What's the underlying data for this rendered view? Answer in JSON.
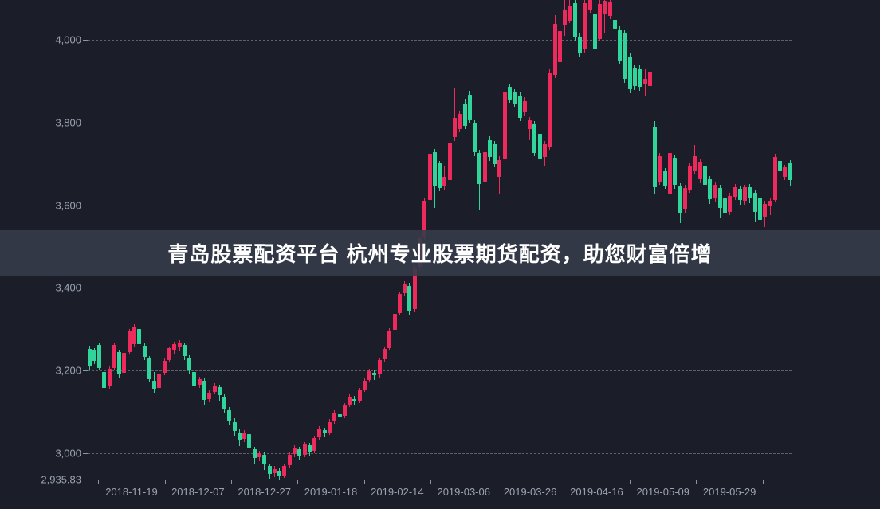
{
  "page": {
    "background": "#1b1e29"
  },
  "banner": {
    "text": "青岛股票配资平台 杭州专业股票期货配资，助您财富倍增",
    "background": "rgba(53,59,73,0.90)",
    "text_color": "#ffffff"
  },
  "chart_data": {
    "type": "candlestick",
    "title": "",
    "convention": "chinese-market: red = up candle, green = down candle",
    "up_color": "#ee2a5c",
    "down_color": "#2fd59b",
    "axis_color": "#8d94a2",
    "label_color": "#9aa2b1",
    "grid": "horizontal dashed only",
    "y_axis": {
      "ticks": [
        {
          "label": "4,000",
          "value": 4000,
          "grid": true
        },
        {
          "label": "3,800",
          "value": 3800,
          "grid": true
        },
        {
          "label": "3,600",
          "value": 3600,
          "grid": true
        },
        {
          "label": "3,400",
          "value": 3400,
          "grid": true
        },
        {
          "label": "3,200",
          "value": 3200,
          "grid": true
        },
        {
          "label": "3,000",
          "value": 3000,
          "grid": true
        },
        {
          "label": "2,935.83",
          "value": 2935.83,
          "grid": false
        }
      ],
      "min": 2935.83,
      "top_of_frame_value": 4096
    },
    "x_axis": {
      "labels": [
        "2018-11-19",
        "2018-12-07",
        "2018-12-27",
        "2019-01-18",
        "2019-02-14",
        "2019-03-06",
        "2019-03-26",
        "2019-04-16",
        "2019-05-09",
        "2019-05-29"
      ]
    },
    "candles": [
      [
        3252,
        3260,
        3200,
        3210
      ],
      [
        3248,
        3254,
        3216,
        3224
      ],
      [
        3262,
        3268,
        3200,
        3206
      ],
      [
        3196,
        3202,
        3148,
        3158
      ],
      [
        3162,
        3210,
        3156,
        3205
      ],
      [
        3206,
        3268,
        3200,
        3262
      ],
      [
        3244,
        3250,
        3182,
        3190
      ],
      [
        3194,
        3248,
        3188,
        3242
      ],
      [
        3244,
        3300,
        3240,
        3296
      ],
      [
        3264,
        3312,
        3256,
        3306
      ],
      [
        3300,
        3306,
        3256,
        3264
      ],
      [
        3260,
        3268,
        3226,
        3234
      ],
      [
        3230,
        3236,
        3172,
        3180
      ],
      [
        3176,
        3196,
        3146,
        3156
      ],
      [
        3158,
        3198,
        3152,
        3192
      ],
      [
        3194,
        3230,
        3188,
        3224
      ],
      [
        3226,
        3258,
        3220,
        3254
      ],
      [
        3250,
        3270,
        3240,
        3264
      ],
      [
        3258,
        3274,
        3246,
        3268
      ],
      [
        3262,
        3268,
        3226,
        3236
      ],
      [
        3232,
        3238,
        3190,
        3200
      ],
      [
        3196,
        3202,
        3152,
        3164
      ],
      [
        3166,
        3186,
        3158,
        3180
      ],
      [
        3176,
        3182,
        3118,
        3130
      ],
      [
        3132,
        3152,
        3124,
        3146
      ],
      [
        3148,
        3170,
        3142,
        3164
      ],
      [
        3160,
        3166,
        3128,
        3140
      ],
      [
        3136,
        3142,
        3096,
        3108
      ],
      [
        3104,
        3112,
        3068,
        3080
      ],
      [
        3076,
        3084,
        3042,
        3054
      ],
      [
        3050,
        3058,
        3018,
        3032
      ],
      [
        3034,
        3056,
        3028,
        3050
      ],
      [
        3046,
        3052,
        3002,
        3014
      ],
      [
        3010,
        3016,
        2974,
        2988
      ],
      [
        2990,
        3006,
        2980,
        3000
      ],
      [
        2996,
        3002,
        2960,
        2974
      ],
      [
        2970,
        2976,
        2938,
        2950
      ],
      [
        2952,
        2970,
        2942,
        2962
      ],
      [
        2958,
        2964,
        2935.83,
        2944
      ],
      [
        2946,
        2976,
        2940,
        2970
      ],
      [
        2972,
        3002,
        2966,
        2996
      ],
      [
        2998,
        3020,
        2990,
        3014
      ],
      [
        3010,
        3016,
        2984,
        2994
      ],
      [
        2996,
        3028,
        2990,
        3024
      ],
      [
        3020,
        3026,
        2994,
        3004
      ],
      [
        3006,
        3042,
        3000,
        3036
      ],
      [
        3038,
        3066,
        3032,
        3060
      ],
      [
        3056,
        3062,
        3038,
        3048
      ],
      [
        3050,
        3082,
        3044,
        3076
      ],
      [
        3078,
        3104,
        3072,
        3098
      ],
      [
        3094,
        3100,
        3080,
        3088
      ],
      [
        3090,
        3122,
        3084,
        3116
      ],
      [
        3118,
        3142,
        3112,
        3136
      ],
      [
        3132,
        3138,
        3116,
        3126
      ],
      [
        3128,
        3158,
        3122,
        3152
      ],
      [
        3154,
        3182,
        3148,
        3176
      ],
      [
        3178,
        3204,
        3172,
        3198
      ],
      [
        3194,
        3200,
        3178,
        3188
      ],
      [
        3190,
        3232,
        3184,
        3226
      ],
      [
        3228,
        3258,
        3222,
        3252
      ],
      [
        3254,
        3302,
        3248,
        3296
      ],
      [
        3298,
        3344,
        3292,
        3338
      ],
      [
        3340,
        3392,
        3334,
        3386
      ],
      [
        3388,
        3416,
        3380,
        3408
      ],
      [
        3404,
        3412,
        3334,
        3344
      ],
      [
        3348,
        3454,
        3342,
        3448
      ],
      [
        3450,
        3526,
        3444,
        3520
      ],
      [
        3522,
        3616,
        3516,
        3610
      ],
      [
        3612,
        3732,
        3606,
        3725
      ],
      [
        3728,
        3736,
        3594,
        3646
      ],
      [
        3702,
        3708,
        3634,
        3641
      ],
      [
        3645,
        3694,
        3636,
        3668
      ],
      [
        3660,
        3762,
        3654,
        3752
      ],
      [
        3764,
        3884,
        3756,
        3812
      ],
      [
        3784,
        3828,
        3776,
        3820
      ],
      [
        3846,
        3858,
        3784,
        3792
      ],
      [
        3868,
        3876,
        3798,
        3806
      ],
      [
        3798,
        3806,
        3718,
        3728
      ],
      [
        3726,
        3734,
        3588,
        3652
      ],
      [
        3658,
        3806,
        3650,
        3728
      ],
      [
        3758,
        3766,
        3708,
        3716
      ],
      [
        3748,
        3756,
        3692,
        3700
      ],
      [
        3668,
        3718,
        3628,
        3710
      ],
      [
        3712,
        3888,
        3704,
        3872
      ],
      [
        3886,
        3894,
        3848,
        3856
      ],
      [
        3872,
        3880,
        3838,
        3846
      ],
      [
        3866,
        3872,
        3804,
        3812
      ],
      [
        3824,
        3862,
        3816,
        3852
      ],
      [
        3784,
        3814,
        3758,
        3806
      ],
      [
        3796,
        3804,
        3718,
        3726
      ],
      [
        3772,
        3780,
        3704,
        3712
      ],
      [
        3716,
        3756,
        3696,
        3748
      ],
      [
        3740,
        3928,
        3734,
        3920
      ],
      [
        3916,
        4060,
        3908,
        4038
      ],
      [
        3946,
        4030,
        3904,
        4022
      ],
      [
        4036,
        4098,
        4010,
        4074
      ],
      [
        4046,
        4112,
        4040,
        4080
      ],
      [
        4088,
        4114,
        3996,
        4006
      ],
      [
        4008,
        4016,
        3960,
        3968
      ],
      [
        3976,
        4106,
        3970,
        4088
      ],
      [
        4072,
        4126,
        4066,
        4098
      ],
      [
        4064,
        4116,
        3968,
        3976
      ],
      [
        4002,
        4112,
        3996,
        4086
      ],
      [
        4062,
        4122,
        4018,
        4095
      ],
      [
        4058,
        4118,
        4050,
        4092
      ],
      [
        4048,
        4056,
        4018,
        4026
      ],
      [
        4024,
        4032,
        3942,
        3950
      ],
      [
        4016,
        4024,
        3896,
        3906
      ],
      [
        3960,
        3968,
        3870,
        3880
      ],
      [
        3932,
        3940,
        3878,
        3888
      ],
      [
        3930,
        3938,
        3876,
        3886
      ],
      [
        3894,
        3930,
        3866,
        3906
      ],
      [
        3888,
        3928,
        3880,
        3922
      ],
      [
        3790,
        3804,
        3626,
        3644
      ],
      [
        3658,
        3726,
        3650,
        3718
      ],
      [
        3682,
        3690,
        3640,
        3648
      ],
      [
        3626,
        3734,
        3620,
        3726
      ],
      [
        3714,
        3722,
        3640,
        3650
      ],
      [
        3646,
        3654,
        3556,
        3582
      ],
      [
        3590,
        3650,
        3582,
        3642
      ],
      [
        3638,
        3702,
        3630,
        3694
      ],
      [
        3682,
        3746,
        3676,
        3718
      ],
      [
        3662,
        3712,
        3654,
        3704
      ],
      [
        3696,
        3704,
        3640,
        3650
      ],
      [
        3662,
        3670,
        3604,
        3614
      ],
      [
        3616,
        3658,
        3608,
        3650
      ],
      [
        3642,
        3650,
        3568,
        3594
      ],
      [
        3616,
        3624,
        3550,
        3580
      ],
      [
        3584,
        3630,
        3576,
        3622
      ],
      [
        3620,
        3652,
        3612,
        3644
      ],
      [
        3640,
        3648,
        3602,
        3612
      ],
      [
        3610,
        3650,
        3602,
        3644
      ],
      [
        3644,
        3652,
        3606,
        3616
      ],
      [
        3630,
        3638,
        3558,
        3584
      ],
      [
        3618,
        3626,
        3554,
        3564
      ],
      [
        3572,
        3610,
        3548,
        3604
      ],
      [
        3600,
        3618,
        3576,
        3610
      ],
      [
        3612,
        3724,
        3606,
        3716
      ],
      [
        3708,
        3716,
        3674,
        3682
      ],
      [
        3668,
        3698,
        3660,
        3692
      ],
      [
        3702,
        3710,
        3648,
        3660
      ]
    ]
  }
}
